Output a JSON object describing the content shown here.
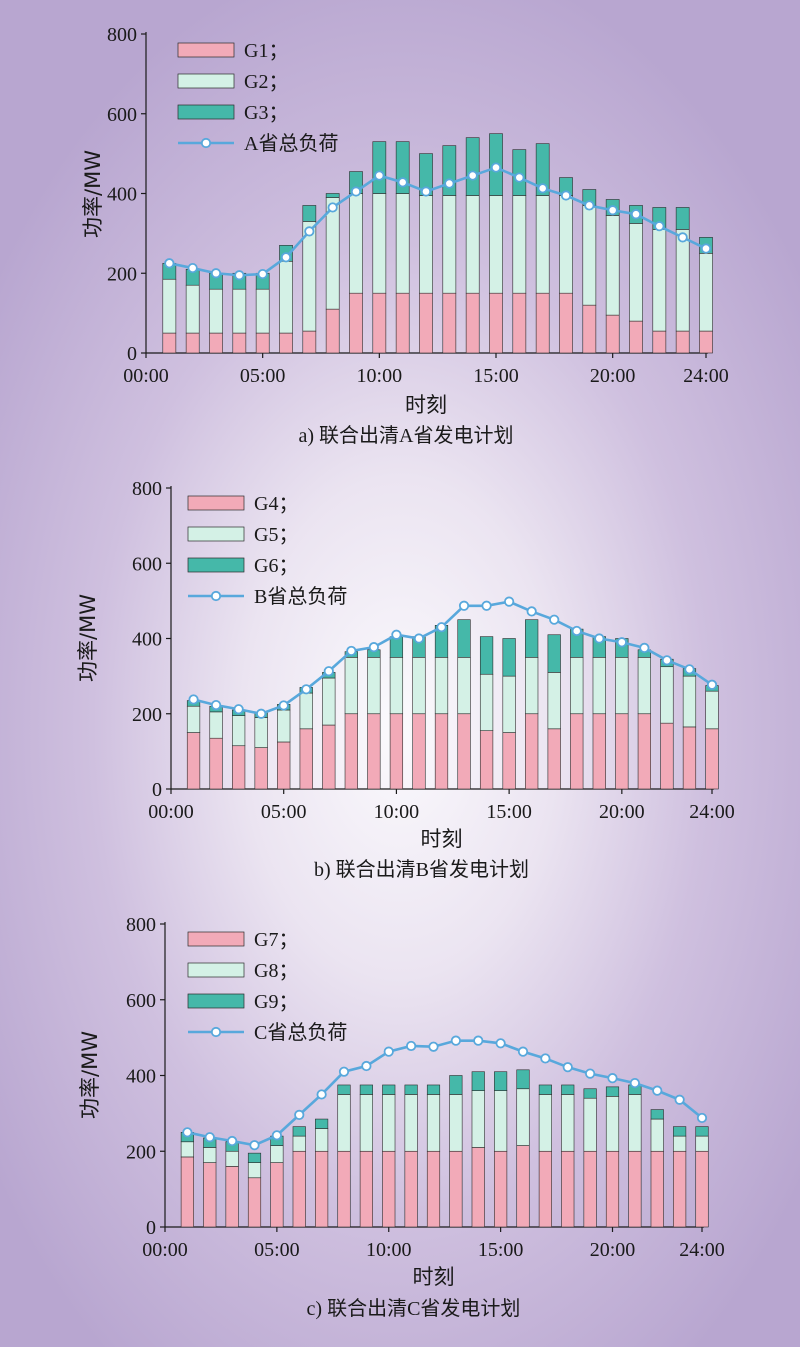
{
  "colors": {
    "g_low": "#f2aab8",
    "g_mid": "#d4f1e6",
    "g_top": "#45b8a9",
    "load_line": "#58a8dc",
    "bar_edge": "#2b2b2b"
  },
  "x_tick_labels": [
    "00:00",
    "05:00",
    "10:00",
    "15:00",
    "20:00",
    "24:00"
  ],
  "y_tick_labels": [
    "0",
    "200",
    "400",
    "600",
    "800"
  ],
  "chart_data": [
    {
      "type": "bar",
      "stacked": true,
      "title": "a) 联合出清A省发电计划",
      "xlabel": "时刻",
      "ylabel": "功率/MW",
      "ylim": [
        0,
        800
      ],
      "xlim": [
        0,
        24
      ],
      "legend_position": "top-left",
      "x": [
        1,
        2,
        3,
        4,
        5,
        6,
        7,
        8,
        9,
        10,
        11,
        12,
        13,
        14,
        15,
        16,
        17,
        18,
        19,
        20,
        21,
        22,
        23,
        24
      ],
      "series": [
        {
          "name": "G1；",
          "values": [
            50,
            50,
            50,
            50,
            50,
            50,
            55,
            110,
            150,
            150,
            150,
            150,
            150,
            150,
            150,
            150,
            150,
            150,
            120,
            95,
            80,
            55,
            55,
            55
          ]
        },
        {
          "name": "G2；",
          "values": [
            135,
            120,
            110,
            110,
            110,
            180,
            275,
            280,
            250,
            250,
            250,
            245,
            245,
            245,
            245,
            245,
            245,
            245,
            250,
            250,
            245,
            255,
            255,
            195
          ]
        },
        {
          "name": "G3；",
          "values": [
            40,
            40,
            40,
            40,
            40,
            40,
            40,
            10,
            55,
            130,
            130,
            105,
            125,
            145,
            155,
            115,
            130,
            45,
            40,
            40,
            45,
            55,
            55,
            40
          ]
        },
        {
          "name": "A省总负荷",
          "type": "line",
          "values": [
            225,
            213,
            200,
            195,
            198,
            240,
            305,
            365,
            405,
            445,
            428,
            405,
            425,
            445,
            465,
            440,
            413,
            395,
            370,
            358,
            348,
            318,
            290,
            262
          ]
        }
      ]
    },
    {
      "type": "bar",
      "stacked": true,
      "title": "b) 联合出清B省发电计划",
      "xlabel": "时刻",
      "ylabel": "功率/MW",
      "ylim": [
        0,
        800
      ],
      "xlim": [
        0,
        24
      ],
      "legend_position": "top-left",
      "x": [
        1,
        2,
        3,
        4,
        5,
        6,
        7,
        8,
        9,
        10,
        11,
        12,
        13,
        14,
        15,
        16,
        17,
        18,
        19,
        20,
        21,
        22,
        23,
        24
      ],
      "series": [
        {
          "name": "G4；",
          "values": [
            150,
            135,
            115,
            110,
            125,
            160,
            170,
            200,
            200,
            200,
            200,
            200,
            200,
            155,
            150,
            200,
            160,
            200,
            200,
            200,
            200,
            175,
            165,
            160
          ]
        },
        {
          "name": "G5；",
          "values": [
            70,
            70,
            80,
            80,
            85,
            95,
            125,
            150,
            150,
            150,
            150,
            150,
            150,
            150,
            150,
            150,
            150,
            150,
            150,
            150,
            150,
            150,
            135,
            100
          ]
        },
        {
          "name": "G6；",
          "values": [
            15,
            15,
            15,
            15,
            15,
            15,
            15,
            15,
            20,
            55,
            55,
            85,
            100,
            100,
            100,
            100,
            100,
            75,
            55,
            50,
            20,
            20,
            20,
            15
          ]
        },
        {
          "name": "B省总负荷",
          "type": "line",
          "values": [
            238,
            223,
            212,
            200,
            222,
            265,
            313,
            367,
            377,
            410,
            400,
            430,
            487,
            487,
            498,
            472,
            450,
            420,
            400,
            390,
            375,
            342,
            318,
            277
          ]
        }
      ]
    },
    {
      "type": "bar",
      "stacked": true,
      "title": "c) 联合出清C省发电计划",
      "xlabel": "时刻",
      "ylabel": "功率/MW",
      "ylim": [
        0,
        800
      ],
      "xlim": [
        0,
        24
      ],
      "legend_position": "top-left",
      "x": [
        1,
        2,
        3,
        4,
        5,
        6,
        7,
        8,
        9,
        10,
        11,
        12,
        13,
        14,
        15,
        16,
        17,
        18,
        19,
        20,
        21,
        22,
        23,
        24
      ],
      "series": [
        {
          "name": "G7；",
          "values": [
            185,
            170,
            160,
            130,
            170,
            200,
            200,
            200,
            200,
            200,
            200,
            200,
            200,
            210,
            200,
            215,
            200,
            200,
            200,
            200,
            200,
            200,
            200,
            200
          ]
        },
        {
          "name": "G8；",
          "values": [
            40,
            40,
            40,
            40,
            45,
            40,
            60,
            150,
            150,
            150,
            150,
            150,
            150,
            150,
            160,
            150,
            150,
            150,
            140,
            145,
            150,
            85,
            40,
            40
          ]
        },
        {
          "name": "G9；",
          "values": [
            25,
            25,
            25,
            25,
            25,
            25,
            25,
            25,
            25,
            25,
            25,
            25,
            50,
            50,
            50,
            50,
            25,
            25,
            25,
            25,
            25,
            25,
            25,
            25
          ]
        },
        {
          "name": "C省总负荷",
          "type": "line",
          "values": [
            250,
            237,
            227,
            216,
            242,
            296,
            350,
            410,
            425,
            463,
            478,
            476,
            492,
            492,
            485,
            463,
            445,
            422,
            405,
            393,
            380,
            360,
            336,
            288
          ]
        }
      ]
    }
  ]
}
